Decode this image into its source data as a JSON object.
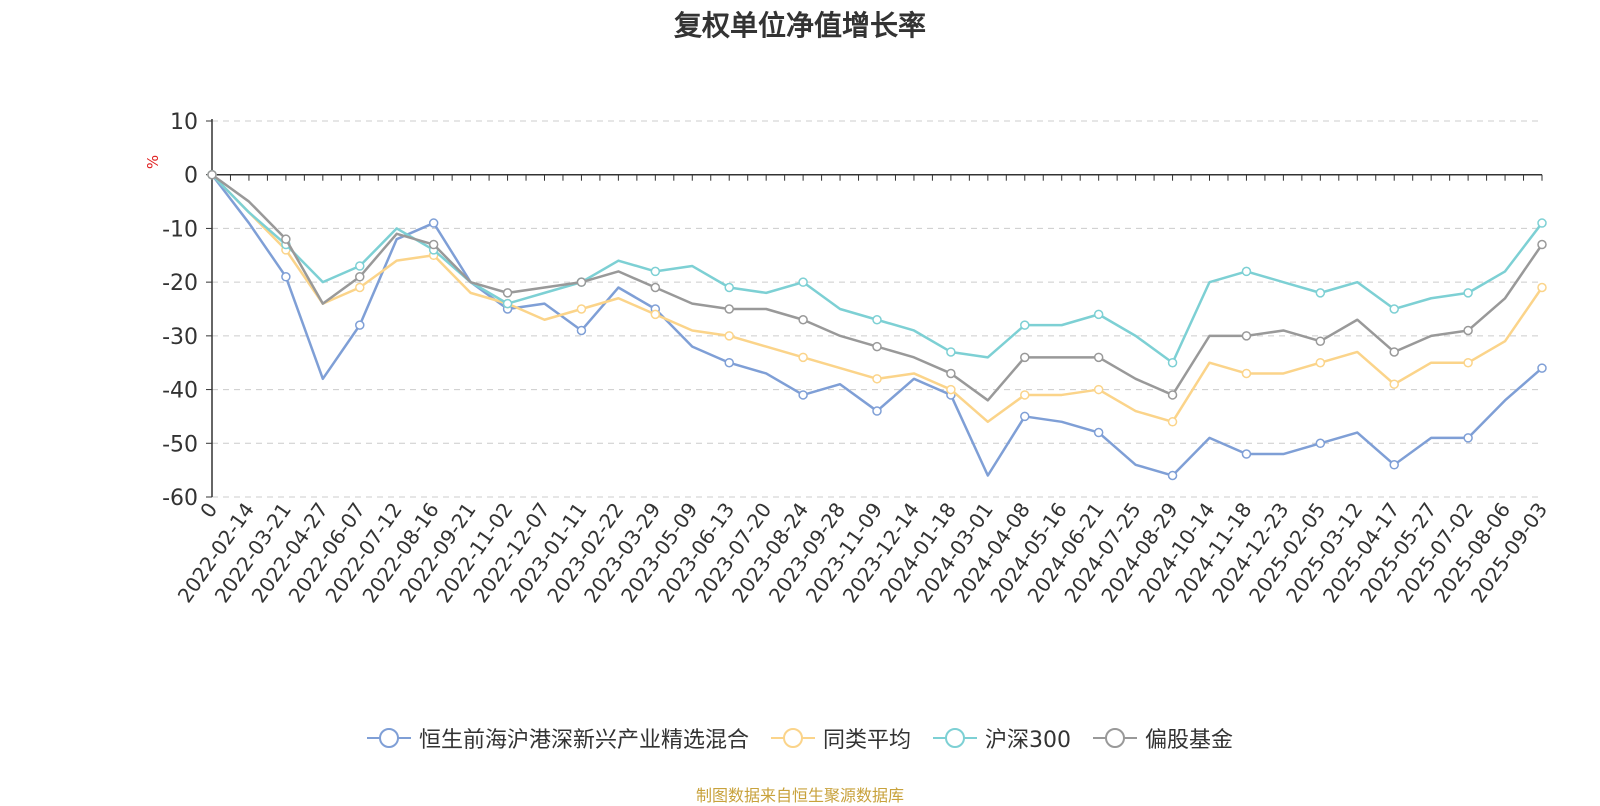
{
  "chart_data": {
    "type": "line",
    "title": "复权单位净值增长率",
    "ylabel": "%",
    "ylim": [
      -60,
      10
    ],
    "yticks": [
      10,
      0,
      -10,
      -20,
      -30,
      -40,
      -50,
      -60
    ],
    "grid": true,
    "legend_position": "bottom",
    "x_ticklabels": [
      "0",
      "2022-02-14",
      "2022-03-21",
      "2022-04-27",
      "2022-06-07",
      "2022-07-12",
      "2022-08-16",
      "2022-09-21",
      "2022-11-02",
      "2022-12-07",
      "2023-01-11",
      "2023-02-22",
      "2023-03-29",
      "2023-05-09",
      "2023-06-13",
      "2023-07-20",
      "2023-08-24",
      "2023-09-28",
      "2023-11-09",
      "2023-12-14",
      "2024-01-18",
      "2024-03-01",
      "2024-04-08",
      "2024-05-16",
      "2024-06-21",
      "2024-07-25",
      "2024-08-29",
      "2024-10-14",
      "2024-11-18",
      "2024-12-23",
      "2025-02-05",
      "2025-03-12",
      "2025-04-17",
      "2025-05-27",
      "2025-07-02",
      "2025-08-06",
      "2025-09-03"
    ],
    "series": [
      {
        "name": "恒生前海沪港深新兴产业精选混合",
        "color": "#7f9fd6",
        "values": [
          0,
          -9,
          -19,
          -38,
          -28,
          -12,
          -9,
          -20,
          -25,
          -24,
          -29,
          -21,
          -25,
          -32,
          -35,
          -37,
          -41,
          -39,
          -44,
          -38,
          -41,
          -56,
          -45,
          -46,
          -48,
          -54,
          -56,
          -49,
          -52,
          -52,
          -50,
          -48,
          -54,
          -49,
          -49,
          -42,
          -36
        ]
      },
      {
        "name": "同类平均",
        "color": "#fbd48a",
        "values": [
          0,
          -7,
          -14,
          -24,
          -21,
          -16,
          -15,
          -22,
          -24,
          -27,
          -25,
          -23,
          -26,
          -29,
          -30,
          -32,
          -34,
          -36,
          -38,
          -37,
          -40,
          -46,
          -41,
          -41,
          -40,
          -44,
          -46,
          -35,
          -37,
          -37,
          -35,
          -33,
          -39,
          -35,
          -35,
          -31,
          -21
        ]
      },
      {
        "name": "沪深300",
        "color": "#7dd0d4",
        "values": [
          0,
          -7,
          -13,
          -20,
          -17,
          -10,
          -14,
          -20,
          -24,
          -22,
          -20,
          -16,
          -18,
          -17,
          -21,
          -22,
          -20,
          -25,
          -27,
          -29,
          -33,
          -34,
          -28,
          -28,
          -26,
          -30,
          -35,
          -20,
          -18,
          -20,
          -22,
          -20,
          -25,
          -23,
          -22,
          -18,
          -9
        ]
      },
      {
        "name": "偏股基金",
        "color": "#999999",
        "values": [
          0,
          -5,
          -12,
          -24,
          -19,
          -11,
          -13,
          -20,
          -22,
          -21,
          -20,
          -18,
          -21,
          -24,
          -25,
          -25,
          -27,
          -30,
          -32,
          -34,
          -37,
          -42,
          -34,
          -34,
          -34,
          -38,
          -41,
          -30,
          -30,
          -29,
          -31,
          -27,
          -33,
          -30,
          -29,
          -23,
          -13
        ]
      }
    ]
  },
  "footer": {
    "source": "制图数据来自恒生聚源数据库"
  }
}
